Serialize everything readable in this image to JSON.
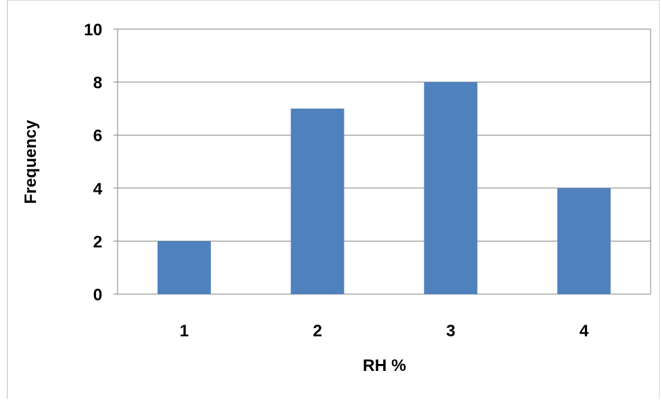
{
  "chart_data": {
    "type": "bar",
    "categories": [
      "1",
      "2",
      "3",
      "4"
    ],
    "values": [
      2,
      7,
      8,
      4
    ],
    "xlabel": "RH %",
    "ylabel": "Frequency",
    "ylim": [
      0,
      10
    ],
    "yticks": [
      "0",
      "2",
      "4",
      "6",
      "8",
      "10"
    ],
    "grid": true,
    "bar_color": "#4f81bd"
  }
}
